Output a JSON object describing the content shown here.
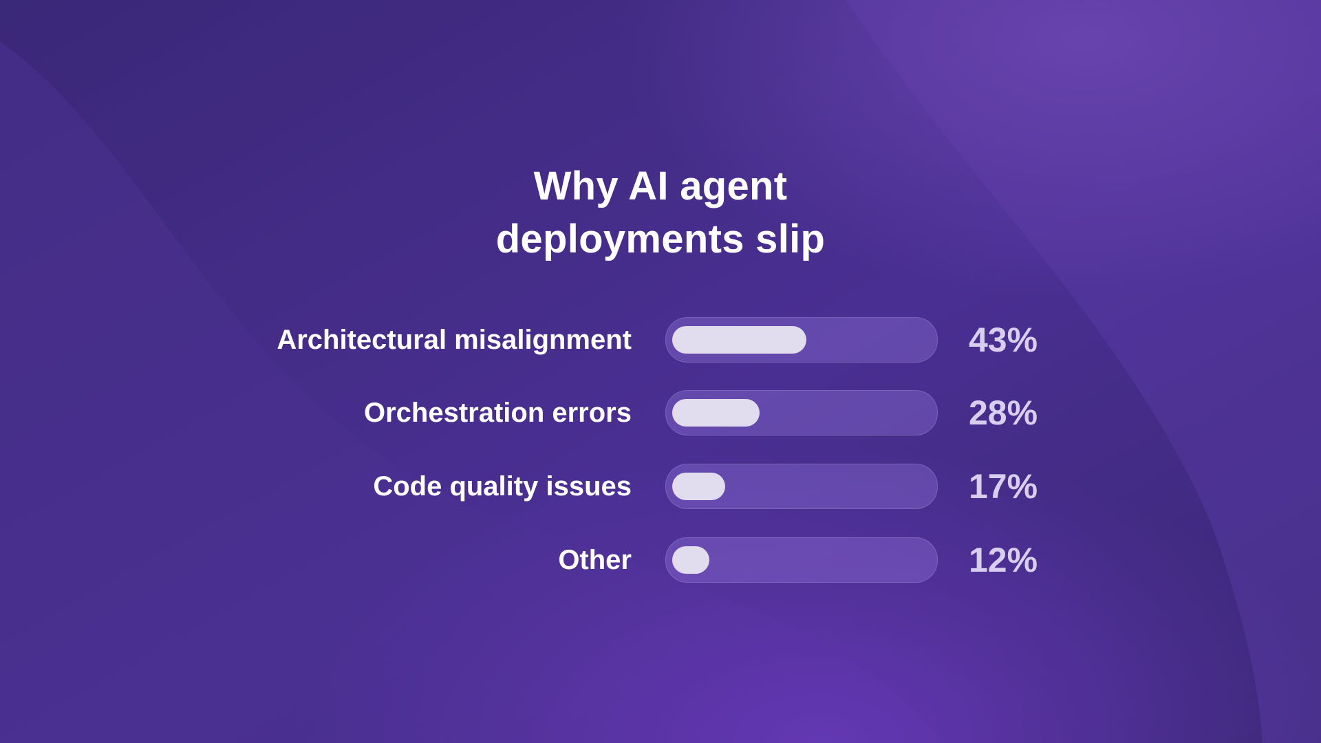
{
  "colors": {
    "background": "#3f2a7f",
    "bar_track": "#6a52b0",
    "bar_fill": "#e2dcef",
    "value_text": "#d8cff0",
    "label_text": "#ffffff"
  },
  "chart_data": {
    "type": "bar",
    "orientation": "horizontal",
    "title_lines": [
      "Why AI agent",
      "deployments slip"
    ],
    "categories": [
      "Architectural misalignment",
      "Orchestration errors",
      "Code quality issues",
      "Other"
    ],
    "values": [
      43,
      28,
      17,
      12
    ],
    "value_labels": [
      "43%",
      "28%",
      "17%",
      "12%"
    ],
    "unit": "%",
    "xlim": [
      0,
      100
    ],
    "grid": false,
    "legend": "none"
  }
}
